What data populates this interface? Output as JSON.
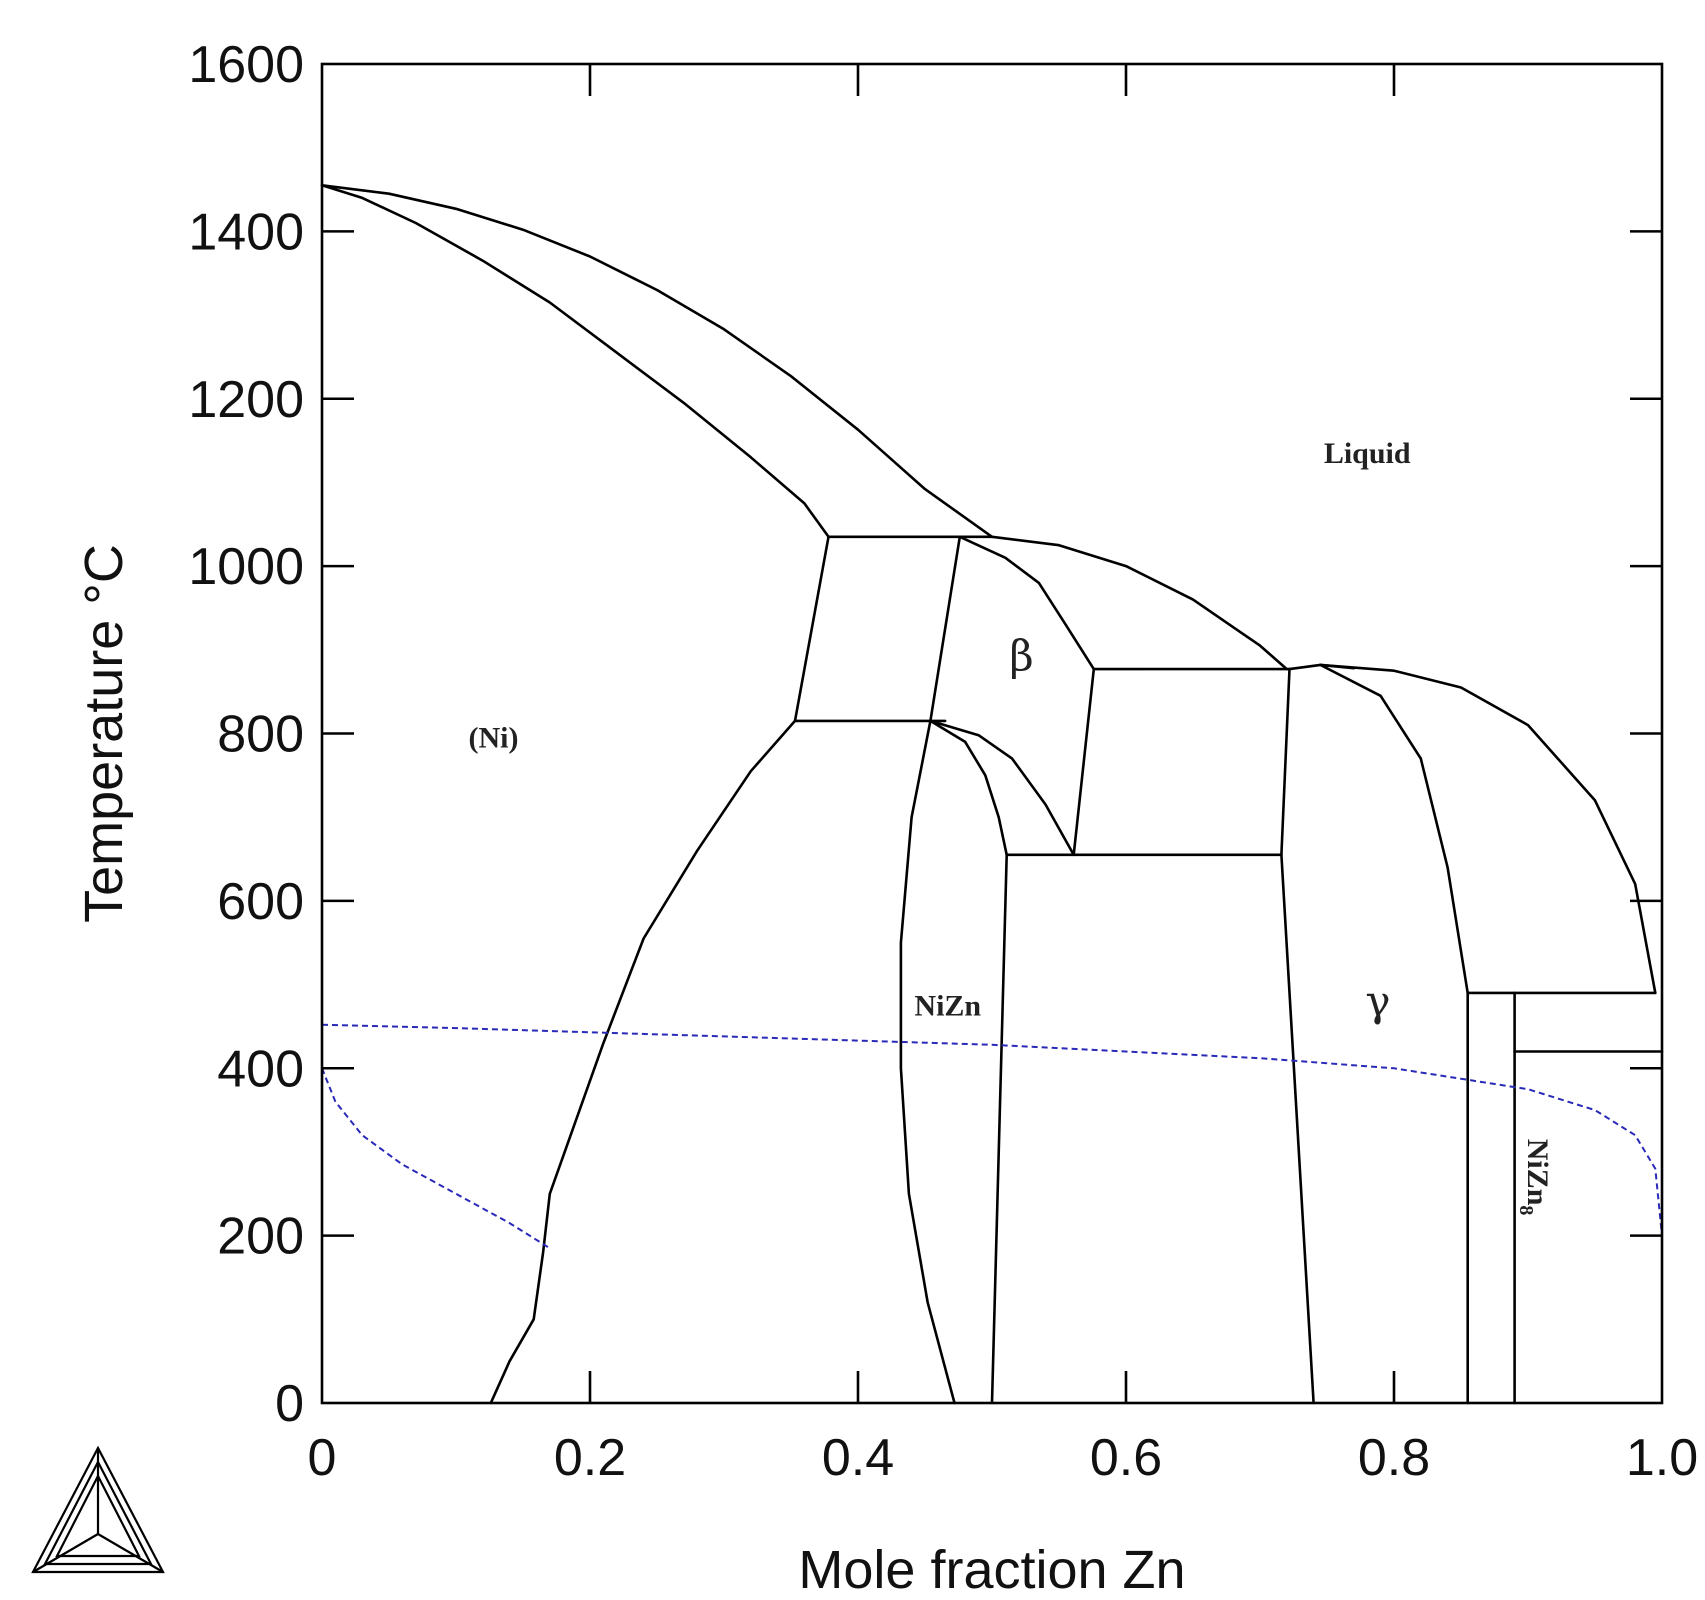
{
  "chart_data": {
    "type": "line",
    "title": "",
    "xlabel": "Mole fraction Zn",
    "ylabel": "Temperature °C",
    "xlim": [
      0,
      1.0
    ],
    "ylim": [
      0,
      1600
    ],
    "x_ticks": [
      {
        "value": 0,
        "label": "0"
      },
      {
        "value": 0.2,
        "label": "0.2"
      },
      {
        "value": 0.4,
        "label": "0.4"
      },
      {
        "value": 0.6,
        "label": "0.6"
      },
      {
        "value": 0.8,
        "label": "0.8"
      },
      {
        "value": 1.0,
        "label": "1.0"
      }
    ],
    "y_ticks": [
      {
        "value": 0,
        "label": "0"
      },
      {
        "value": 200,
        "label": "200"
      },
      {
        "value": 400,
        "label": "400"
      },
      {
        "value": 600,
        "label": "600"
      },
      {
        "value": 800,
        "label": "800"
      },
      {
        "value": 1000,
        "label": "1000"
      },
      {
        "value": 1200,
        "label": "1200"
      },
      {
        "value": 1400,
        "label": "1400"
      },
      {
        "value": 1600,
        "label": "1600"
      }
    ],
    "grid": false,
    "boundary_color": "#000000",
    "magnetic_color": "#2a2ab8",
    "phase_labels": [
      {
        "key": "liquid",
        "text": "Liquid",
        "x": 0.78,
        "y": 1135
      },
      {
        "key": "ni",
        "text": "(Ni)",
        "x": 0.128,
        "y": 795
      },
      {
        "key": "beta",
        "text": "β",
        "x": 0.522,
        "y": 888
      },
      {
        "key": "nizn",
        "text": "NiZn",
        "x": 0.467,
        "y": 475
      },
      {
        "key": "gamma",
        "text": "γ",
        "x": 0.788,
        "y": 475
      }
    ],
    "nizn8_label": {
      "main": "NiZn",
      "sub": "8",
      "x": 0.9,
      "y": 270
    },
    "series": [
      {
        "name": "",
        "kind": "boundary",
        "points": [
          [
            0,
            1455
          ],
          [
            0.05,
            1445
          ],
          [
            0.1,
            1427
          ],
          [
            0.15,
            1402
          ],
          [
            0.2,
            1370
          ],
          [
            0.25,
            1330
          ],
          [
            0.3,
            1283
          ],
          [
            0.35,
            1227
          ],
          [
            0.4,
            1163
          ],
          [
            0.45,
            1092
          ],
          [
            0.5,
            1035
          ]
        ]
      },
      {
        "name": "",
        "kind": "boundary",
        "points": [
          [
            0,
            1455
          ],
          [
            0.03,
            1440
          ],
          [
            0.07,
            1410
          ],
          [
            0.12,
            1365
          ],
          [
            0.17,
            1315
          ],
          [
            0.22,
            1255
          ],
          [
            0.27,
            1195
          ],
          [
            0.32,
            1130
          ],
          [
            0.36,
            1075
          ],
          [
            0.378,
            1035
          ]
        ]
      },
      {
        "name": "",
        "kind": "boundary",
        "points": [
          [
            0.378,
            1035
          ],
          [
            0.5,
            1035
          ]
        ]
      },
      {
        "name": "",
        "kind": "boundary",
        "points": [
          [
            0.378,
            1035
          ],
          [
            0.353,
            815
          ]
        ]
      },
      {
        "name": "",
        "kind": "boundary",
        "points": [
          [
            0.476,
            1035
          ],
          [
            0.465,
            925
          ],
          [
            0.454,
            815
          ]
        ]
      },
      {
        "name": "",
        "kind": "boundary",
        "points": [
          [
            0.353,
            815
          ],
          [
            0.465,
            815
          ]
        ]
      },
      {
        "name": "",
        "kind": "boundary",
        "points": [
          [
            0.353,
            815
          ],
          [
            0.32,
            755
          ],
          [
            0.28,
            660
          ],
          [
            0.24,
            555
          ],
          [
            0.21,
            430
          ],
          [
            0.17,
            250
          ],
          [
            0.165,
            180
          ],
          [
            0.158,
            100
          ],
          [
            0.14,
            50
          ],
          [
            0.126,
            0
          ]
        ]
      },
      {
        "name": "",
        "kind": "boundary",
        "points": [
          [
            0.5,
            1035
          ],
          [
            0.55,
            1025
          ],
          [
            0.6,
            1000
          ],
          [
            0.65,
            960
          ],
          [
            0.7,
            905
          ],
          [
            0.72,
            877
          ]
        ]
      },
      {
        "name": "",
        "kind": "boundary",
        "points": [
          [
            0.476,
            1035
          ],
          [
            0.51,
            1010
          ],
          [
            0.535,
            980
          ],
          [
            0.555,
            930
          ],
          [
            0.576,
            877
          ]
        ]
      },
      {
        "name": "",
        "kind": "boundary",
        "points": [
          [
            0.576,
            877
          ],
          [
            0.722,
            877
          ]
        ]
      },
      {
        "name": "",
        "kind": "boundary",
        "points": [
          [
            0.576,
            877
          ],
          [
            0.561,
            655
          ]
        ]
      },
      {
        "name": "",
        "kind": "boundary",
        "points": [
          [
            0.454,
            815
          ],
          [
            0.49,
            798
          ],
          [
            0.515,
            770
          ],
          [
            0.54,
            715
          ],
          [
            0.561,
            655
          ]
        ]
      },
      {
        "name": "",
        "kind": "boundary",
        "points": [
          [
            0.454,
            815
          ],
          [
            0.48,
            790
          ],
          [
            0.495,
            750
          ],
          [
            0.505,
            700
          ],
          [
            0.511,
            655
          ]
        ]
      },
      {
        "name": "",
        "kind": "boundary",
        "points": [
          [
            0.511,
            655
          ],
          [
            0.716,
            655
          ]
        ]
      },
      {
        "name": "",
        "kind": "boundary",
        "points": [
          [
            0.454,
            815
          ],
          [
            0.44,
            700
          ],
          [
            0.432,
            550
          ],
          [
            0.432,
            400
          ],
          [
            0.438,
            250
          ],
          [
            0.452,
            120
          ],
          [
            0.472,
            0
          ]
        ]
      },
      {
        "name": "",
        "kind": "boundary",
        "points": [
          [
            0.511,
            655
          ],
          [
            0.5,
            0
          ]
        ]
      },
      {
        "name": "",
        "kind": "boundary",
        "points": [
          [
            0.722,
            877
          ],
          [
            0.716,
            655
          ],
          [
            0.74,
            0
          ]
        ]
      },
      {
        "name": "",
        "kind": "boundary",
        "points": [
          [
            0.722,
            877
          ],
          [
            0.745,
            882
          ],
          [
            0.77,
            878
          ]
        ]
      },
      {
        "name": "",
        "kind": "boundary",
        "points": [
          [
            0.745,
            882
          ],
          [
            0.79,
            845
          ],
          [
            0.82,
            770
          ],
          [
            0.84,
            640
          ],
          [
            0.855,
            490
          ]
        ]
      },
      {
        "name": "",
        "kind": "boundary",
        "points": [
          [
            0.745,
            882
          ],
          [
            0.8,
            875
          ],
          [
            0.85,
            855
          ],
          [
            0.9,
            810
          ],
          [
            0.95,
            720
          ],
          [
            0.98,
            620
          ],
          [
            0.995,
            490
          ]
        ]
      },
      {
        "name": "",
        "kind": "boundary",
        "points": [
          [
            0.855,
            490
          ],
          [
            0.995,
            490
          ]
        ]
      },
      {
        "name": "",
        "kind": "boundary",
        "points": [
          [
            0.855,
            490
          ],
          [
            0.855,
            0
          ]
        ]
      },
      {
        "name": "",
        "kind": "boundary",
        "points": [
          [
            0.89,
            490
          ],
          [
            0.89,
            0
          ]
        ]
      },
      {
        "name": "",
        "kind": "boundary",
        "points": [
          [
            0.89,
            420
          ],
          [
            1.0,
            420
          ]
        ]
      },
      {
        "name": "",
        "kind": "magnetic",
        "points": [
          [
            0,
            452
          ],
          [
            0.1,
            448
          ],
          [
            0.2,
            443
          ],
          [
            0.3,
            438
          ],
          [
            0.4,
            433
          ],
          [
            0.5,
            428
          ],
          [
            0.6,
            420
          ],
          [
            0.7,
            412
          ],
          [
            0.8,
            400
          ],
          [
            0.9,
            375
          ],
          [
            0.95,
            350
          ],
          [
            0.98,
            320
          ],
          [
            0.995,
            280
          ],
          [
            1.0,
            200
          ]
        ]
      },
      {
        "name": "",
        "kind": "magnetic",
        "points": [
          [
            0,
            400
          ],
          [
            0.01,
            360
          ],
          [
            0.03,
            320
          ],
          [
            0.06,
            285
          ],
          [
            0.1,
            250
          ],
          [
            0.14,
            215
          ],
          [
            0.17,
            185
          ]
        ]
      }
    ]
  }
}
